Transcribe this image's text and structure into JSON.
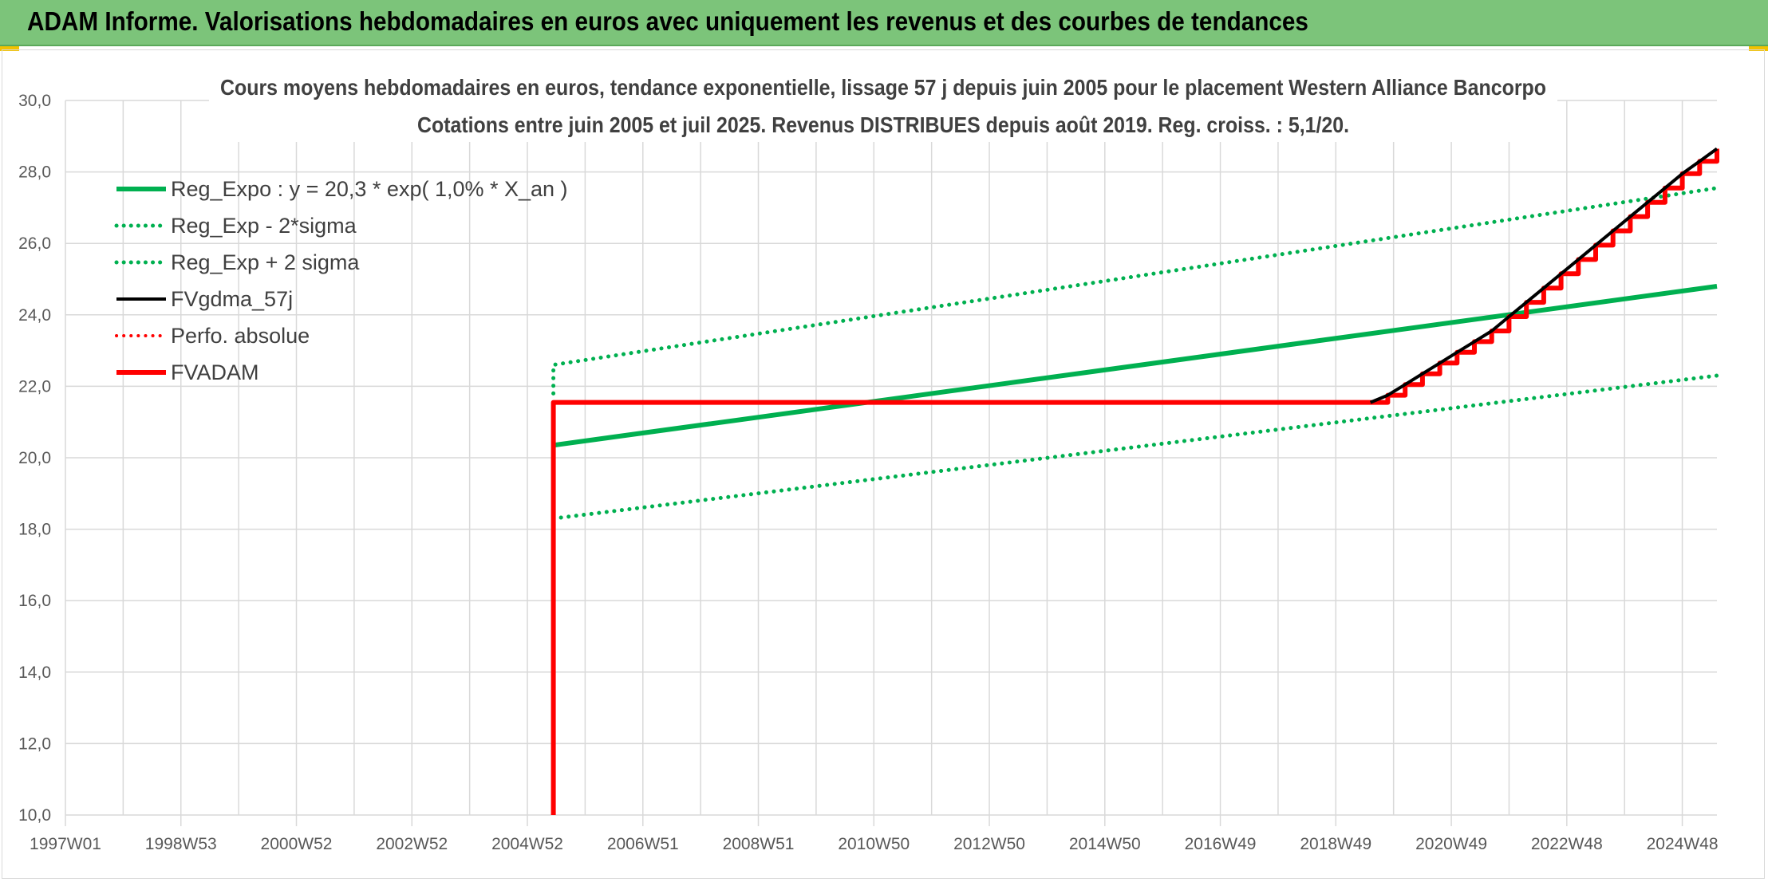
{
  "banner": {
    "title": "ADAM Informe. Valorisations hebdomadaires en euros avec uniquement les revenus et des courbes de tendances"
  },
  "colors": {
    "banner": "#7cc47a",
    "green": "#00b050",
    "red": "#ff0000",
    "black": "#000000",
    "grid": "#d9d9d9"
  },
  "chart_data": {
    "type": "line",
    "title": "Cours moyens hebdomadaires en euros, tendance exponentielle, lissage 57 j depuis juin 2005 pour le placement Western Alliance Bancorpo",
    "subtitle": "Cotations entre juin 2005 et juil 2025. Revenus DISTRIBUES depuis août 2019. Reg. croiss. : 5,1/20.",
    "xlabel": "",
    "ylabel": "",
    "ylim": [
      10,
      30
    ],
    "yticks": [
      "10,0",
      "12,0",
      "14,0",
      "16,0",
      "18,0",
      "20,0",
      "22,0",
      "24,0",
      "26,0",
      "28,0",
      "30,0"
    ],
    "xlim": [
      1997.0,
      2025.6
    ],
    "xticks": [
      {
        "label": "1997W01",
        "x": 1997.0
      },
      {
        "label": "1998W53",
        "x": 1999.0
      },
      {
        "label": "2000W52",
        "x": 2001.0
      },
      {
        "label": "2002W52",
        "x": 2003.0
      },
      {
        "label": "2004W52",
        "x": 2005.0
      },
      {
        "label": "2006W51",
        "x": 2007.0
      },
      {
        "label": "2008W51",
        "x": 2009.0
      },
      {
        "label": "2010W50",
        "x": 2011.0
      },
      {
        "label": "2012W50",
        "x": 2013.0
      },
      {
        "label": "2014W50",
        "x": 2015.0
      },
      {
        "label": "2016W49",
        "x": 2017.0
      },
      {
        "label": "2018W49",
        "x": 2019.0
      },
      {
        "label": "2020W49",
        "x": 2021.0
      },
      {
        "label": "2022W48",
        "x": 2023.0
      },
      {
        "label": "2024W48",
        "x": 2025.0
      }
    ],
    "x_minor_gridlines": [
      1998,
      2000,
      2002,
      2004,
      2006,
      2008,
      2010,
      2012,
      2014,
      2016,
      2018,
      2020,
      2022,
      2024
    ],
    "grid": true,
    "legend_position": "top-left",
    "series": [
      {
        "name": "Reg_Expo : y = 20,3 * exp( 1,0% *  X_an )",
        "color": "#00b050",
        "style": "solid",
        "width": 6,
        "x": [
          2005.45,
          2025.6
        ],
        "y": [
          20.35,
          24.8
        ]
      },
      {
        "name": "Reg_Exp - 2*sigma",
        "color": "#00b050",
        "style": "dotted",
        "width": 5,
        "x": [
          2005.45,
          2025.6
        ],
        "y": [
          18.3,
          22.3
        ]
      },
      {
        "name": "Reg_Exp + 2 sigma",
        "color": "#00b050",
        "style": "dotted",
        "width": 5,
        "x": [
          2005.45,
          2005.45,
          2025.6
        ],
        "y": [
          21.8,
          22.6,
          27.55
        ]
      },
      {
        "name": "FVgdma_57j",
        "color": "#000000",
        "style": "solid",
        "width": 4,
        "x": [
          2019.6,
          2019.9,
          2020.2,
          2020.5,
          2020.8,
          2021.1,
          2021.4,
          2021.7,
          2022.0,
          2022.3,
          2022.6,
          2022.9,
          2023.2,
          2023.5,
          2023.8,
          2024.1,
          2024.4,
          2024.7,
          2025.0,
          2025.3,
          2025.6
        ],
        "y": [
          21.55,
          21.75,
          22.05,
          22.35,
          22.65,
          22.95,
          23.25,
          23.55,
          23.95,
          24.35,
          24.75,
          25.15,
          25.55,
          25.95,
          26.35,
          26.75,
          27.15,
          27.55,
          27.95,
          28.3,
          28.65
        ]
      },
      {
        "name": "Perfo. absolue",
        "color": "#ff0000",
        "style": "dotted",
        "width": 4,
        "x": [],
        "y": []
      },
      {
        "name": "FVADAM",
        "color": "#ff0000",
        "style": "step",
        "width": 6,
        "x": [
          2005.45,
          2005.45,
          2019.55,
          2019.9,
          2020.2,
          2020.5,
          2020.8,
          2021.1,
          2021.4,
          2021.7,
          2022.0,
          2022.3,
          2022.6,
          2022.9,
          2023.2,
          2023.5,
          2023.8,
          2024.1,
          2024.4,
          2024.7,
          2025.0,
          2025.3,
          2025.6
        ],
        "y": [
          10.0,
          21.55,
          21.55,
          21.75,
          22.05,
          22.35,
          22.65,
          22.95,
          23.25,
          23.55,
          23.95,
          24.35,
          24.75,
          25.15,
          25.55,
          25.95,
          26.35,
          26.75,
          27.15,
          27.55,
          27.95,
          28.3,
          28.65
        ]
      }
    ]
  }
}
